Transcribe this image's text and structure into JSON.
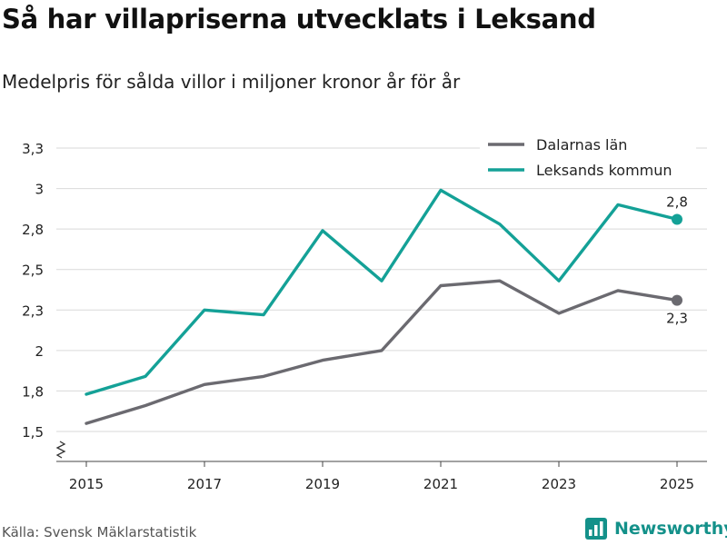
{
  "header": {
    "title": "Så har villapriserna utvecklats i Leksand",
    "subtitle": "Medelpris för sålda villor i miljoner kronor år för år"
  },
  "footer": {
    "source": "Källa: Svensk Mäklarstatistik",
    "brand": "Newsworthy",
    "brand_icon": "bar-chart-icon"
  },
  "colors": {
    "dalarna": "#6b6a70",
    "leksand": "#14a197",
    "grid": "#d9d9d9",
    "brand": "#14918a"
  },
  "chart_data": {
    "type": "line",
    "title": "Så har villapriserna utvecklats i Leksand",
    "subtitle": "Medelpris för sålda villor i miljoner kronor år för år",
    "xlabel": "",
    "ylabel": "",
    "x": [
      2015,
      2016,
      2017,
      2018,
      2019,
      2020,
      2021,
      2022,
      2023,
      2024,
      2025
    ],
    "x_ticks": [
      2015,
      2017,
      2019,
      2021,
      2023,
      2025
    ],
    "x_tick_labels": [
      "2015",
      "2017",
      "2019",
      "2021",
      "2023",
      "2025"
    ],
    "y_ticks": [
      1.5,
      1.75,
      2.0,
      2.25,
      2.5,
      2.75,
      3.0,
      3.25
    ],
    "y_tick_labels": [
      "1,5",
      "1,8",
      "2",
      "2,3",
      "2,5",
      "2,8",
      "3",
      "3,3"
    ],
    "ylim": [
      1.45,
      3.33
    ],
    "xlim": [
      2014.6,
      2025.5
    ],
    "grid": true,
    "legend_position": "top-right",
    "axis_break": true,
    "series": [
      {
        "name": "Dalarnas län",
        "color": "#6b6a70",
        "values": [
          1.55,
          1.66,
          1.79,
          1.84,
          1.94,
          2.0,
          2.4,
          2.43,
          2.23,
          2.37,
          2.31
        ],
        "end_label": "2,3",
        "end_label_position": "below"
      },
      {
        "name": "Leksands kommun",
        "color": "#14a197",
        "values": [
          1.73,
          1.84,
          2.25,
          2.22,
          2.74,
          2.43,
          2.99,
          2.78,
          2.43,
          2.9,
          2.81
        ],
        "end_label": "2,8",
        "end_label_position": "above"
      }
    ]
  }
}
